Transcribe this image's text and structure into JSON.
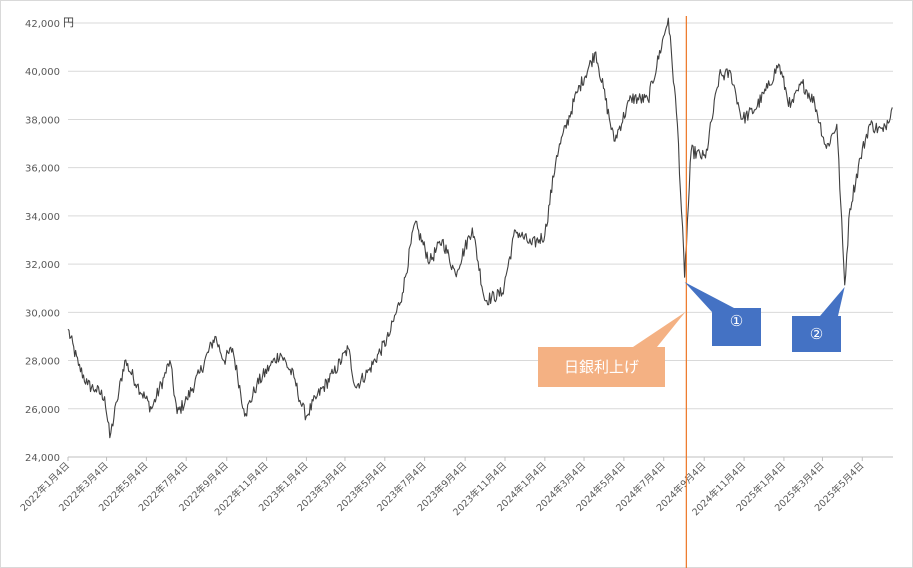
{
  "chart_data": {
    "type": "line",
    "unit_label": "円",
    "ylim": [
      24000,
      42000
    ],
    "y_ticks": [
      "24,000",
      "26,000",
      "28,000",
      "30,000",
      "32,000",
      "34,000",
      "36,000",
      "38,000",
      "40,000",
      "42,000"
    ],
    "x_ticks": [
      "2022年1月4日",
      "2022年3月4日",
      "2022年5月4日",
      "2022年7月4日",
      "2022年9月4日",
      "2022年11月4日",
      "2023年1月4日",
      "2023年3月4日",
      "2023年5月4日",
      "2023年7月4日",
      "2023年9月4日",
      "2023年11月4日",
      "2024年1月4日",
      "2024年3月4日",
      "2024年5月4日",
      "2024年7月4日",
      "2024年9月4日",
      "2024年11月4日",
      "2025年1月4日",
      "2025年3月4日",
      "2025年5月4日"
    ],
    "grid": true,
    "series": [
      {
        "color": "#404040",
        "points": [
          [
            "2022-01-04",
            29300
          ],
          [
            "2022-01-20",
            27800
          ],
          [
            "2022-02-03",
            27000
          ],
          [
            "2022-02-15",
            26800
          ],
          [
            "2022-03-01",
            26500
          ],
          [
            "2022-03-09",
            24800
          ],
          [
            "2022-03-20",
            26300
          ],
          [
            "2022-04-01",
            28000
          ],
          [
            "2022-04-20",
            27000
          ],
          [
            "2022-05-12",
            26000
          ],
          [
            "2022-05-31",
            27300
          ],
          [
            "2022-06-09",
            28000
          ],
          [
            "2022-06-20",
            25800
          ],
          [
            "2022-07-05",
            26400
          ],
          [
            "2022-07-25",
            27500
          ],
          [
            "2022-08-17",
            29000
          ],
          [
            "2022-08-31",
            28000
          ],
          [
            "2022-09-13",
            28500
          ],
          [
            "2022-09-30",
            26000
          ],
          [
            "2022-10-03",
            25800
          ],
          [
            "2022-10-20",
            27000
          ],
          [
            "2022-11-10",
            27800
          ],
          [
            "2022-11-25",
            28300
          ],
          [
            "2022-12-16",
            27300
          ],
          [
            "2022-12-28",
            26100
          ],
          [
            "2023-01-04",
            25700
          ],
          [
            "2023-01-20",
            26500
          ],
          [
            "2023-02-15",
            27500
          ],
          [
            "2023-03-09",
            28500
          ],
          [
            "2023-03-20",
            26900
          ],
          [
            "2023-04-10",
            27600
          ],
          [
            "2023-05-10",
            29000
          ],
          [
            "2023-05-31",
            30800
          ],
          [
            "2023-06-19",
            33700
          ],
          [
            "2023-07-12",
            32100
          ],
          [
            "2023-07-31",
            33000
          ],
          [
            "2023-08-20",
            31600
          ],
          [
            "2023-09-15",
            33500
          ],
          [
            "2023-10-04",
            30500
          ],
          [
            "2023-10-31",
            30800
          ],
          [
            "2023-11-20",
            33400
          ],
          [
            "2023-12-15",
            32800
          ],
          [
            "2024-01-04",
            33200
          ],
          [
            "2024-01-22",
            36500
          ],
          [
            "2024-02-22",
            39100
          ],
          [
            "2024-03-22",
            40800
          ],
          [
            "2024-04-19",
            37100
          ],
          [
            "2024-05-15",
            38900
          ],
          [
            "2024-06-10",
            38800
          ],
          [
            "2024-07-11",
            42200
          ],
          [
            "2024-07-25",
            37800
          ],
          [
            "2024-08-05",
            31458
          ],
          [
            "2024-08-15",
            36700
          ],
          [
            "2024-09-06",
            36400
          ],
          [
            "2024-09-27",
            39800
          ],
          [
            "2024-10-15",
            39900
          ],
          [
            "2024-11-01",
            38000
          ],
          [
            "2024-11-20",
            38400
          ],
          [
            "2024-12-10",
            39300
          ],
          [
            "2024-12-27",
            40300
          ],
          [
            "2025-01-14",
            38500
          ],
          [
            "2025-02-01",
            39500
          ],
          [
            "2025-02-20",
            38700
          ],
          [
            "2025-03-10",
            36800
          ],
          [
            "2025-03-26",
            37800
          ],
          [
            "2025-04-07",
            31136
          ],
          [
            "2025-04-15",
            34300
          ],
          [
            "2025-05-01",
            36400
          ],
          [
            "2025-05-15",
            37800
          ],
          [
            "2025-06-05",
            37500
          ],
          [
            "2025-06-19",
            38500
          ]
        ]
      }
    ],
    "annotations": {
      "boj_label": "日銀利上げ",
      "boj_date": "2024-07-31",
      "mark1_label": "①",
      "mark1_date": "2024-08-05",
      "mark1_value": 31458,
      "mark2_label": "②",
      "mark2_date": "2025-04-07",
      "mark2_value": 31136,
      "color_boj": "#f4b183",
      "color_vline": "#ed7d31",
      "color_marks": "#4472c4"
    }
  }
}
